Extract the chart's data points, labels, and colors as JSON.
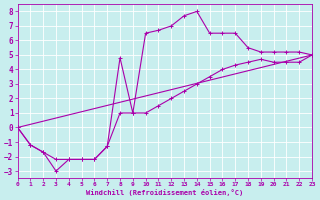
{
  "xlabel": "Windchill (Refroidissement éolien,°C)",
  "background_color": "#c8eeee",
  "line_color": "#aa00aa",
  "grid_color": "#ffffff",
  "xmin": 0,
  "xmax": 23,
  "ymin": -3.5,
  "ymax": 8.5,
  "yticks": [
    -3,
    -2,
    -1,
    0,
    1,
    2,
    3,
    4,
    5,
    6,
    7,
    8
  ],
  "xticks": [
    0,
    1,
    2,
    3,
    4,
    5,
    6,
    7,
    8,
    9,
    10,
    11,
    12,
    13,
    14,
    15,
    16,
    17,
    18,
    19,
    20,
    21,
    22,
    23
  ],
  "series1_x": [
    0,
    1,
    2,
    3,
    4,
    5,
    6,
    7,
    8,
    9,
    10,
    11,
    12,
    13,
    14,
    15,
    16,
    17,
    18,
    19,
    20,
    21,
    22,
    23
  ],
  "series1_y": [
    0,
    -1.2,
    -1.7,
    -3.0,
    -2.2,
    -2.2,
    -2.2,
    -1.3,
    4.8,
    1.0,
    6.5,
    6.7,
    7.0,
    7.7,
    8.0,
    6.5,
    6.5,
    6.5,
    5.5,
    5.2,
    5.2,
    5.2,
    5.2,
    5.0
  ],
  "series2_x": [
    0,
    1,
    2,
    3,
    4,
    5,
    6,
    7,
    8,
    9,
    10,
    11,
    12,
    13,
    14,
    15,
    16,
    17,
    18,
    19,
    20,
    21,
    22,
    23
  ],
  "series2_y": [
    0,
    -1.2,
    -1.7,
    -2.2,
    -2.2,
    -2.2,
    -2.2,
    -1.3,
    1.0,
    1.0,
    1.0,
    1.5,
    2.0,
    2.5,
    3.0,
    3.5,
    4.0,
    4.3,
    4.5,
    4.7,
    4.5,
    4.5,
    4.5,
    5.0
  ],
  "series3_x": [
    0,
    23
  ],
  "series3_y": [
    0,
    5.0
  ]
}
